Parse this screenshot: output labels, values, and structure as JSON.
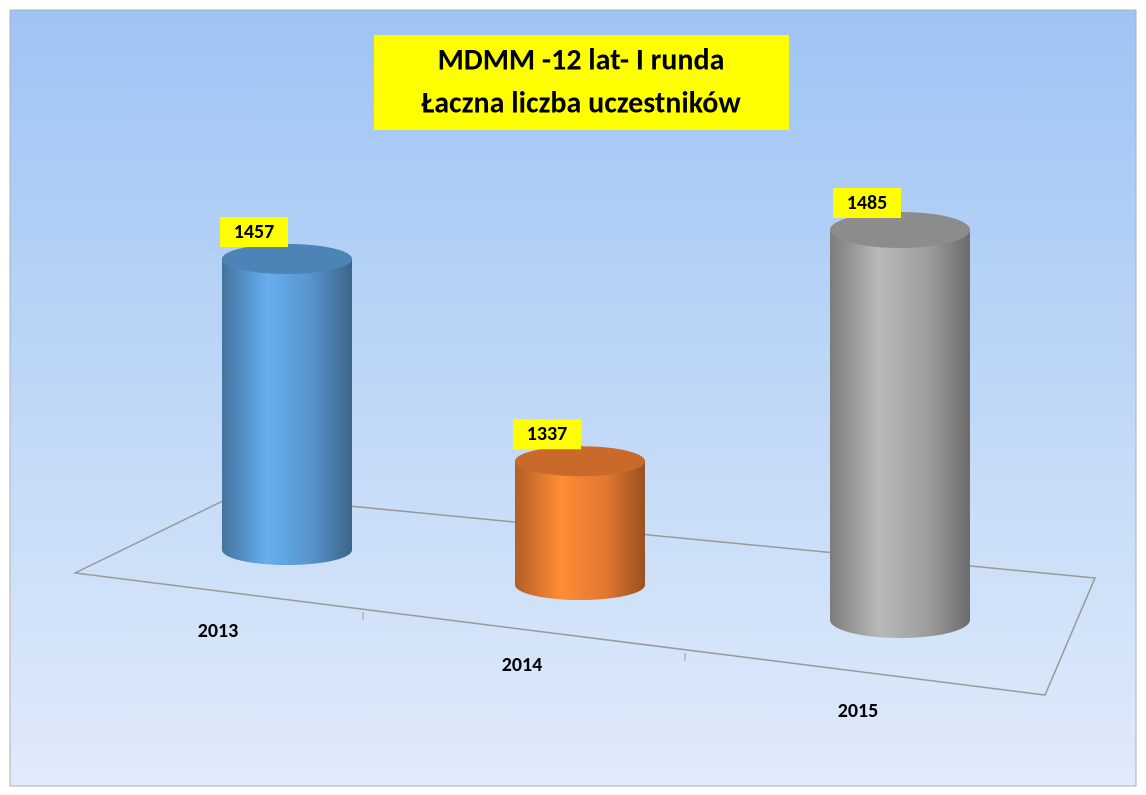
{
  "chart_data": {
    "type": "bar",
    "title": "MDMM -12 lat- I runda",
    "subtitle": "Łaczna liczba uczestników",
    "categories": [
      "2013",
      "2014",
      "2015"
    ],
    "values": [
      1457,
      1337,
      1485
    ],
    "colors": [
      "#5b9bd5",
      "#ed7d31",
      "#a5a5a5"
    ]
  }
}
